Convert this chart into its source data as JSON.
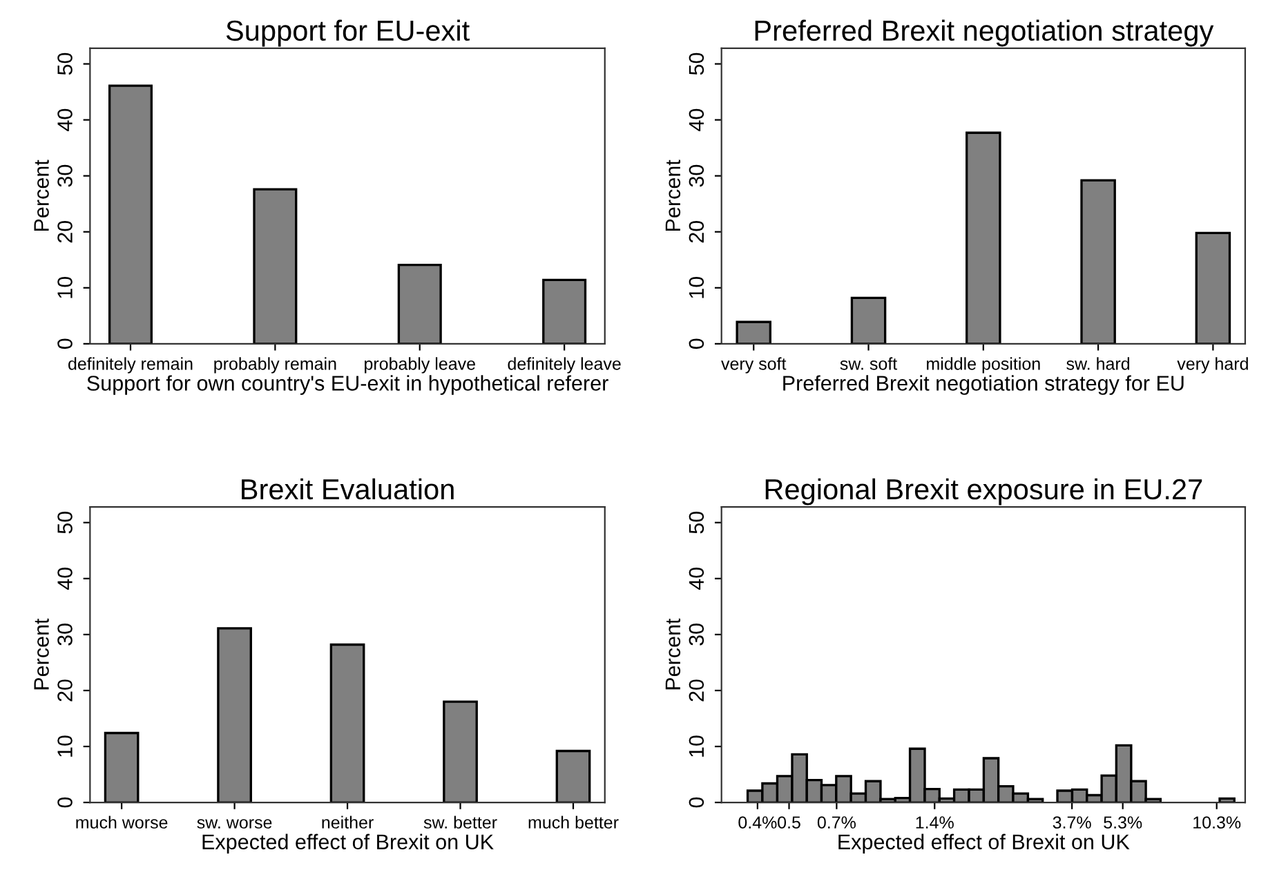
{
  "chart_data": [
    {
      "type": "bar",
      "title": "Support for EU-exit",
      "xlabel": "Support for own country's EU-exit in hypothetical referer",
      "ylabel": "Percent",
      "categories": [
        "definitely remain",
        "probably remain",
        "probably leave",
        "definitely leave"
      ],
      "values": [
        46.1,
        27.6,
        14.1,
        11.4
      ],
      "color": "#808080",
      "ylim": [
        0,
        52.8
      ],
      "yticks": [
        0,
        10,
        20,
        30,
        40,
        50
      ],
      "grid": false
    },
    {
      "type": "bar",
      "title": "Preferred Brexit negotiation strategy",
      "xlabel": "Preferred Brexit negotiation strategy for EU",
      "ylabel": "Percent",
      "categories": [
        "very soft",
        "sw. soft",
        "middle position",
        "sw. hard",
        "very hard"
      ],
      "values": [
        3.9,
        8.2,
        37.7,
        29.2,
        19.8
      ],
      "color": "#808080",
      "ylim": [
        0,
        52.8
      ],
      "yticks": [
        0,
        10,
        20,
        30,
        40,
        50
      ],
      "grid": false
    },
    {
      "type": "bar",
      "title": "Brexit Evaluation",
      "xlabel": "Expected effect of Brexit on UK",
      "ylabel": "Percent",
      "categories": [
        "much worse",
        "sw. worse",
        "neither",
        "sw. better",
        "much better"
      ],
      "values": [
        12.4,
        31.1,
        28.2,
        18.0,
        9.2
      ],
      "color": "#808080",
      "ylim": [
        0,
        52.8
      ],
      "yticks": [
        0,
        10,
        20,
        30,
        40,
        50
      ],
      "grid": false
    },
    {
      "type": "histogram",
      "title": "Regional Brexit exposure in EU.27",
      "xlabel": "Expected effect of Brexit on UK",
      "ylabel": "Percent",
      "log": "x",
      "bins": [
        0.373,
        0.414,
        0.46,
        0.511,
        0.567,
        0.629,
        0.698,
        0.775,
        0.86,
        0.955,
        1.06,
        1.176,
        1.306,
        1.449,
        1.608,
        1.786,
        1.982,
        2.199,
        2.44,
        2.71,
        3.007,
        3.337,
        3.706,
        4.112,
        4.564,
        5.063,
        5.624,
        6.24,
        6.924,
        7.691,
        8.533,
        9.469,
        10.52,
        11.67
      ],
      "values": [
        2.1,
        3.4,
        4.7,
        8.6,
        4.0,
        3.1,
        4.7,
        1.6,
        3.8,
        0.6,
        0.8,
        9.6,
        2.4,
        0.7,
        2.3,
        2.3,
        7.9,
        2.9,
        1.6,
        0.6,
        0,
        2.1,
        2.3,
        1.3,
        4.8,
        10.2,
        3.8,
        0.6,
        0,
        0,
        0,
        0,
        0.7
      ],
      "color": "#808080",
      "xlim": [
        0.31,
        12.6
      ],
      "xticks": [
        {
          "value": 0.4,
          "label": "0.4%"
        },
        {
          "value": 0.5,
          "label": "0.5"
        },
        {
          "value": 0.7,
          "label": "0.7%"
        },
        {
          "value": 1.4,
          "label": "1.4%"
        },
        {
          "value": 3.7,
          "label": "3.7%"
        },
        {
          "value": 5.3,
          "label": "5.3%"
        },
        {
          "value": 10.3,
          "label": "10.3%"
        }
      ],
      "ylim": [
        0,
        52.8
      ],
      "yticks": [
        0,
        10,
        20,
        30,
        40,
        50
      ],
      "grid": false
    }
  ]
}
